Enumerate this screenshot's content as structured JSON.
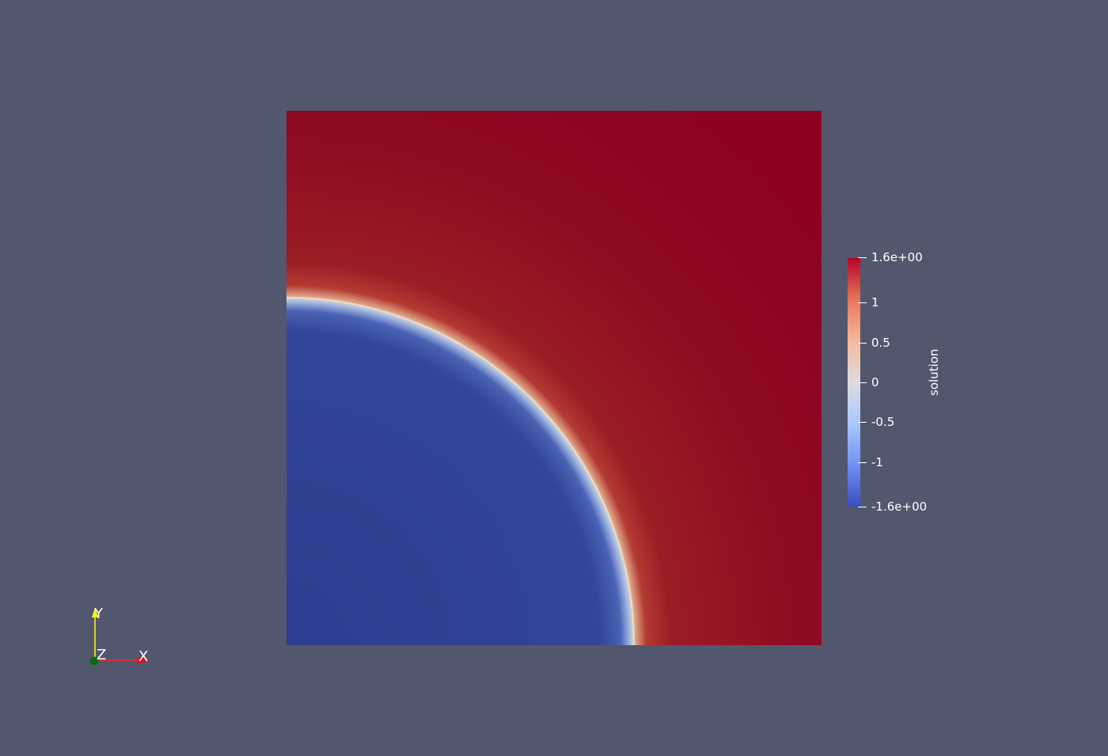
{
  "render_view": {
    "background_color": "#52576e"
  },
  "scalar_field": {
    "name": "solution",
    "inner_color": "#303f94",
    "outer_color": "#8c0020",
    "interface_color": "#dbd6cf"
  },
  "color_legend": {
    "title": "solution",
    "labels": [
      "1.6e+00",
      "1",
      "0.5",
      "0",
      "-0.5",
      "-1",
      "-1.6e+00"
    ],
    "values": [
      1.6,
      1,
      0.5,
      0,
      -0.5,
      -1,
      -1.6
    ],
    "range": [
      -1.6,
      1.6
    ],
    "colormap": [
      "#3b4cc0",
      "#6f92f3",
      "#aac7fd",
      "#dddddd",
      "#f7b89c",
      "#e7755b",
      "#b40426"
    ]
  },
  "orientation_axes": {
    "x_label": "X",
    "y_label": "Y",
    "z_label": "Z",
    "x_color": "#ff0000",
    "y_color": "#ffff00",
    "z_color": "#00aa00"
  }
}
